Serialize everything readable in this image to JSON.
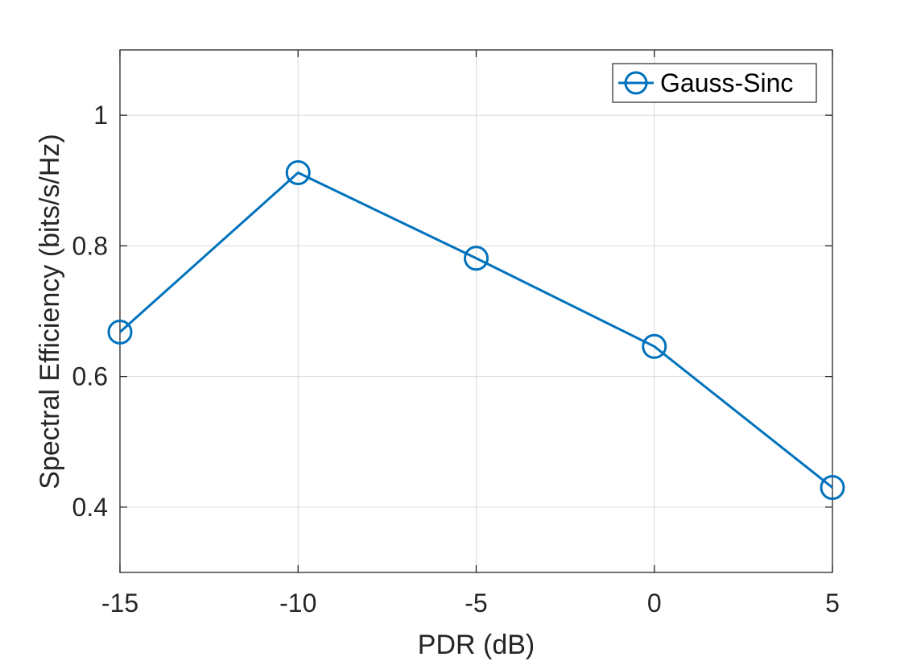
{
  "chart_data": {
    "type": "line",
    "title": "",
    "xlabel": "PDR (dB)",
    "ylabel": "Spectral Efficiency (bits/s/Hz)",
    "xlim": [
      -15,
      5
    ],
    "ylim": [
      0.3,
      1.1
    ],
    "xticks": [
      -15,
      -10,
      -5,
      0,
      5
    ],
    "yticks": [
      0.4,
      0.6,
      0.8,
      1
    ],
    "xtick_labels": [
      "-15",
      "-10",
      "-5",
      "0",
      "5"
    ],
    "ytick_labels": [
      "0.4",
      "0.6",
      "0.8",
      "1"
    ],
    "grid": true,
    "legend_position": "top-right",
    "series": [
      {
        "name": "Gauss-Sinc",
        "color": "#0072BD",
        "marker": "circle",
        "x": [
          -15,
          -10,
          -5,
          0,
          5
        ],
        "y": [
          0.668,
          0.912,
          0.781,
          0.646,
          0.43
        ]
      }
    ]
  }
}
